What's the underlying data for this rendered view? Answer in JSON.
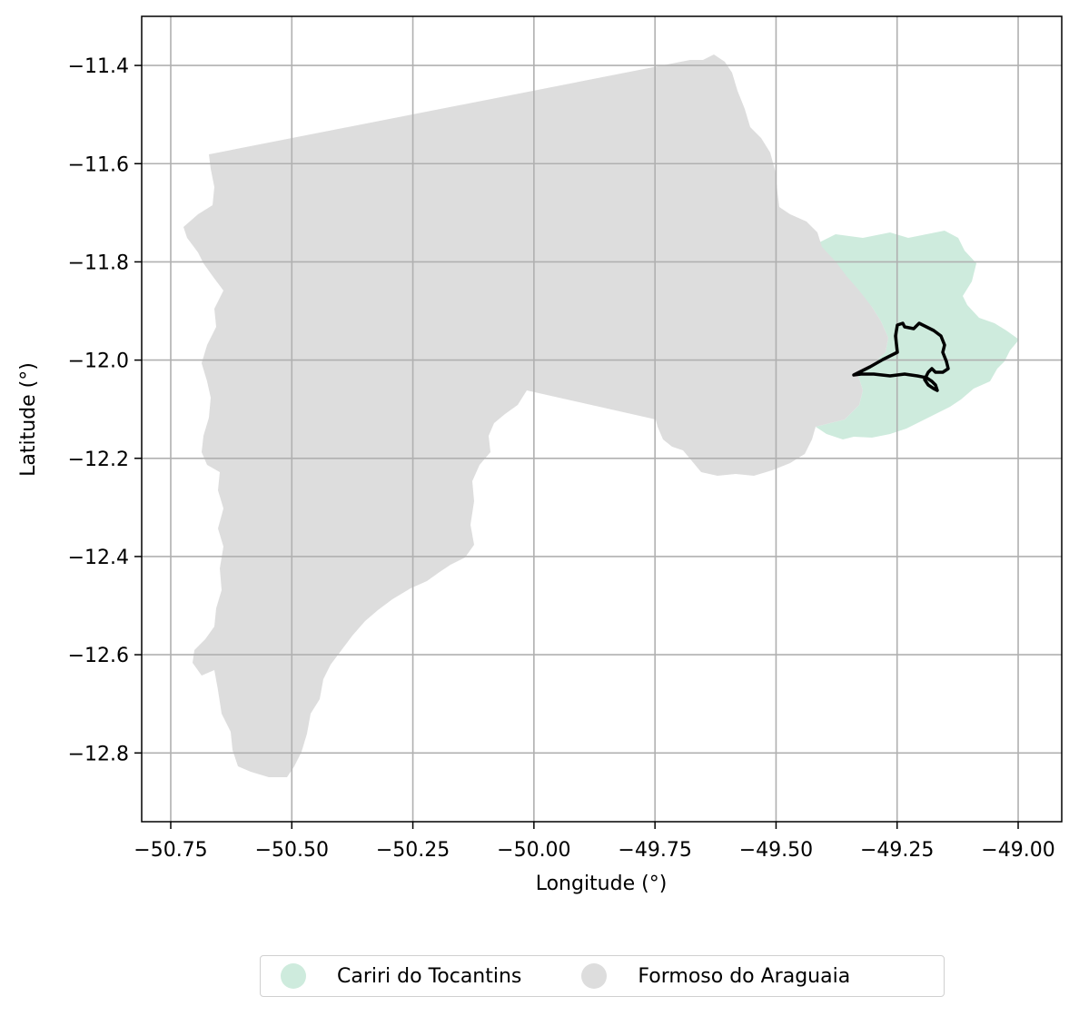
{
  "map": {
    "xlabel": "Longitude (°)",
    "ylabel": "Latitude (°)",
    "xlim": [
      -50.81,
      -48.91
    ],
    "ylim": [
      -12.94,
      -11.3
    ],
    "x_ticks": [
      -50.75,
      -50.5,
      -50.25,
      -50.0,
      -49.75,
      -49.5,
      -49.25,
      -49.0
    ],
    "x_tick_labels": [
      "−50.75",
      "−50.50",
      "−50.25",
      "−50.00",
      "−49.75",
      "−49.50",
      "−49.25",
      "−49.00"
    ],
    "y_ticks": [
      -11.4,
      -11.6,
      -11.8,
      -12.0,
      -12.2,
      -12.4,
      -12.6,
      -12.8
    ],
    "y_tick_labels": [
      "−11.4",
      "−11.6",
      "−11.8",
      "−12.0",
      "−12.2",
      "−12.4",
      "−12.6",
      "−12.8"
    ],
    "grid": true,
    "colors": {
      "formoso": "#dddddd",
      "cariri": "#ceebdd",
      "outline": "#000000",
      "grid": "#b0b0b0"
    }
  },
  "legend": {
    "placement": "bottom-center",
    "items": [
      {
        "label": "Cariri do Tocantins",
        "color": "#ceebdd"
      },
      {
        "label": "Formoso do Araguaia",
        "color": "#dddddd"
      }
    ]
  }
}
